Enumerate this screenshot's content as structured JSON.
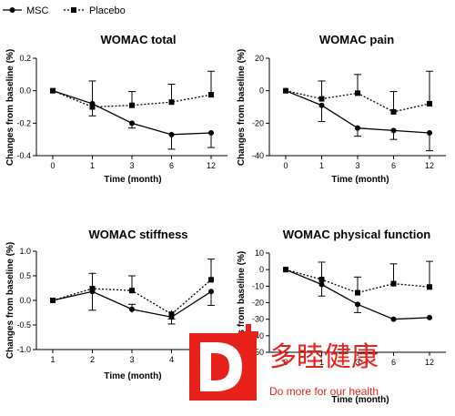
{
  "legend": [
    {
      "name": "MSC",
      "style": "solid",
      "marker": "circle"
    },
    {
      "name": "Placebo",
      "style": "dotted",
      "marker": "square"
    }
  ],
  "watermark": {
    "logo_text": "D",
    "text": "多睦健康",
    "subtext": "Do more for our health",
    "color": "#e8221b"
  },
  "chart_data": [
    {
      "type": "line",
      "title": "WOMAC total",
      "xlabel": "Time (month)",
      "ylabel": "Changes from baseline (%)",
      "categories": [
        "0",
        "1",
        "3",
        "6",
        "12"
      ],
      "ylim": [
        -0.4,
        0.2
      ],
      "yticks": [
        "0.2",
        "0.0",
        "-0.2",
        "-0.4"
      ],
      "series": [
        {
          "name": "MSC",
          "values": [
            0.0,
            -0.08,
            -0.2,
            -0.27,
            -0.26
          ],
          "err_low": [
            0,
            -0.155,
            -0.23,
            -0.36,
            -0.35
          ],
          "err_high": [
            0,
            -0.08,
            -0.2,
            -0.27,
            -0.26
          ]
        },
        {
          "name": "Placebo",
          "values": [
            0.0,
            -0.1,
            -0.09,
            -0.07,
            -0.025
          ],
          "err_low": [
            0,
            -0.1,
            -0.09,
            -0.07,
            -0.025
          ],
          "err_high": [
            0,
            0.06,
            -0.005,
            0.04,
            0.12
          ]
        }
      ]
    },
    {
      "type": "line",
      "title": "WOMAC pain",
      "xlabel": "Time (month)",
      "ylabel": "Changes from baseline (%)",
      "categories": [
        "0",
        "1",
        "3",
        "6",
        "12"
      ],
      "ylim": [
        -40,
        20
      ],
      "yticks": [
        "20",
        "0",
        "-20",
        "-40"
      ],
      "series": [
        {
          "name": "MSC",
          "values": [
            0,
            -9,
            -23,
            -24.5,
            -26
          ],
          "err_low": [
            0,
            -19,
            -28,
            -30,
            -37
          ],
          "err_high": [
            0,
            -9,
            -23,
            -24.5,
            -26
          ]
        },
        {
          "name": "Placebo",
          "values": [
            0,
            -5,
            -1.5,
            -13,
            -8
          ],
          "err_low": [
            0,
            -5,
            -1.5,
            -13,
            -8
          ],
          "err_high": [
            0,
            6,
            10,
            -0.5,
            12
          ]
        }
      ]
    },
    {
      "type": "line",
      "title": "WOMAC stiffness",
      "xlabel": "Time (month)",
      "ylabel": "Changes from baseline (%)",
      "categories": [
        "1",
        "2",
        "3",
        "4",
        ""
      ],
      "ylim": [
        -1.0,
        1.0
      ],
      "yticks": [
        "1.0",
        "0.5",
        "0.0",
        "-0.5",
        "-1.0"
      ],
      "series": [
        {
          "name": "MSC",
          "values": [
            0.0,
            0.18,
            -0.18,
            -0.34,
            0.18
          ],
          "err_low": [
            0,
            -0.2,
            -0.25,
            -0.48,
            -0.1
          ],
          "err_high": [
            0,
            0.18,
            -0.08,
            -0.34,
            0.18
          ]
        },
        {
          "name": "Placebo",
          "values": [
            0.0,
            0.24,
            0.2,
            -0.28,
            0.42
          ],
          "err_low": [
            0,
            0.24,
            0.2,
            -0.38,
            0.42
          ],
          "err_high": [
            0,
            0.55,
            0.5,
            -0.2,
            0.84
          ]
        }
      ]
    },
    {
      "type": "line",
      "title": "WOMAC physical function",
      "xlabel": "Time (month)",
      "ylabel": "Changes from baseline (%)",
      "categories": [
        "0",
        "1",
        "3",
        "6",
        "12"
      ],
      "ylim": [
        -50,
        10
      ],
      "yticks": [
        "10",
        "0",
        "-10",
        "-20",
        "-30",
        "-40",
        "-50"
      ],
      "series": [
        {
          "name": "MSC",
          "values": [
            0,
            -9,
            -21,
            -30,
            -29
          ],
          "err_low": [
            0,
            -16,
            -26,
            -30,
            -29
          ],
          "err_high": [
            0,
            -9,
            -21,
            -30,
            -29
          ]
        },
        {
          "name": "Placebo",
          "values": [
            0,
            -6,
            -14,
            -8.5,
            -10.5
          ],
          "err_low": [
            0,
            -6,
            -14,
            -8.5,
            -10.5
          ],
          "err_high": [
            0,
            4.5,
            -4.5,
            3.5,
            5
          ]
        }
      ]
    }
  ]
}
